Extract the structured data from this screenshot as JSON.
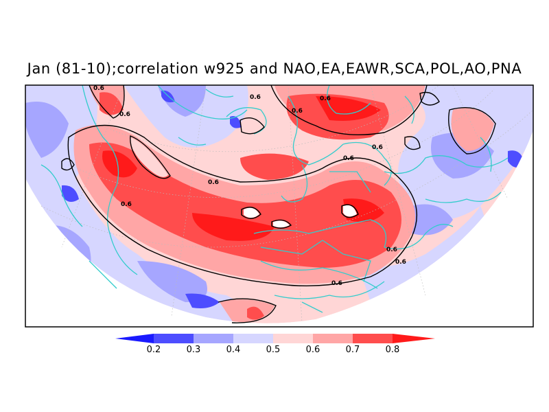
{
  "title": "Jan (81-10);correlation w925 and NAO,EA,EAWR,SCA,POL,AO,PNA",
  "map": {
    "contour_label": "0.6",
    "colors": {
      "land_outline": "#33cccc",
      "contour": "#000000",
      "frame": "#000000"
    }
  },
  "colorbar": {
    "levels": [
      "0.2",
      "0.3",
      "0.4",
      "0.5",
      "0.6",
      "0.7",
      "0.8"
    ],
    "colors": [
      "#1a1aff",
      "#4d4dff",
      "#a6a6ff",
      "#d6d6ff",
      "#ffd6d6",
      "#ffa6a6",
      "#ff4d4d",
      "#ff1a1a"
    ]
  }
}
